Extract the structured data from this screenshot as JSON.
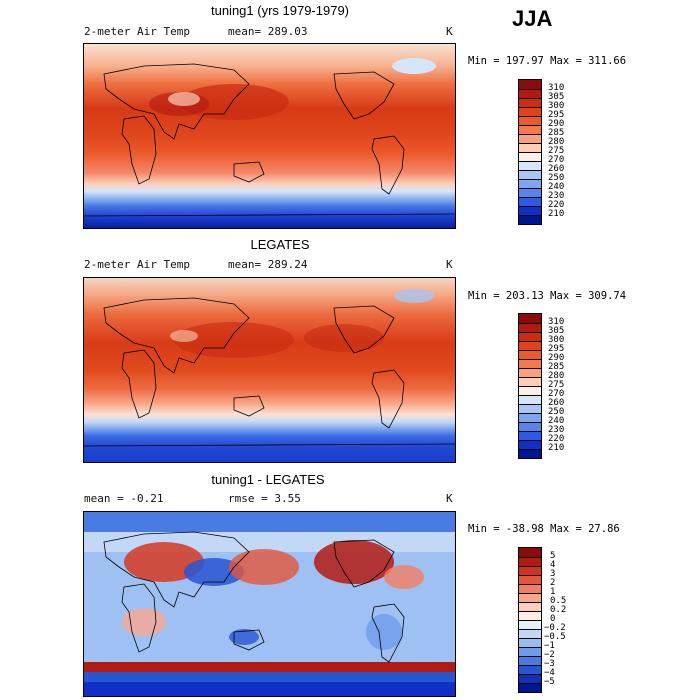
{
  "season": "JJA",
  "panels": [
    {
      "title": "tuning1 (yrs 1979-1979)",
      "variable": "2-meter Air Temp",
      "stat1": "mean= 289.03",
      "stat2": "",
      "units": "K",
      "minmax": "Min = 197.97 Max = 311.66",
      "colorbar": {
        "labels": [
          "310",
          "305",
          "300",
          "295",
          "290",
          "285",
          "280",
          "275",
          "270",
          "260",
          "250",
          "240",
          "230",
          "220",
          "210"
        ],
        "colors": [
          "#8b0a0a",
          "#b01a10",
          "#cc2d12",
          "#e0431a",
          "#ec5b2d",
          "#f47a4e",
          "#f9a17c",
          "#fdcdb4",
          "#fef0e6",
          "#d6e6fa",
          "#a9c6f4",
          "#7ea6ef",
          "#5585ea",
          "#2d5ae0",
          "#0f2fc6",
          "#001690"
        ]
      }
    },
    {
      "title": "LEGATES",
      "variable": "2-meter Air Temp",
      "stat1": "mean= 289.24",
      "stat2": "",
      "units": "K",
      "minmax": "Min = 203.13 Max = 309.74",
      "colorbar": {
        "labels": [
          "310",
          "305",
          "300",
          "295",
          "290",
          "285",
          "280",
          "275",
          "270",
          "260",
          "250",
          "240",
          "230",
          "220",
          "210"
        ],
        "colors": [
          "#8b0a0a",
          "#b01a10",
          "#cc2d12",
          "#e0431a",
          "#ec5b2d",
          "#f47a4e",
          "#f9a17c",
          "#fdcdb4",
          "#fef0e6",
          "#d6e6fa",
          "#a9c6f4",
          "#7ea6ef",
          "#5585ea",
          "#2d5ae0",
          "#0f2fc6",
          "#001690"
        ]
      }
    },
    {
      "title": "tuning1 - LEGATES",
      "variable": "",
      "stat1": "mean =   -0.21",
      "stat2": "rmse =    3.55",
      "units": "K",
      "minmax": "Min = -38.98 Max =  27.86",
      "colorbar": {
        "labels": [
          "5",
          "4",
          "3",
          "2",
          "1",
          "0.5",
          "0.2",
          "0",
          "−0.2",
          "−0.5",
          "−1",
          "−2",
          "−3",
          "−4",
          "−5"
        ],
        "colors": [
          "#8b0a0a",
          "#b21b12",
          "#cf3420",
          "#e4553a",
          "#f27d62",
          "#f9a68f",
          "#fdccbd",
          "#feeee6",
          "#e6f0fc",
          "#c2d8f6",
          "#99bcf1",
          "#6f9bea",
          "#4a7be2",
          "#2855d4",
          "#1030b8",
          "#001690"
        ]
      }
    }
  ]
}
